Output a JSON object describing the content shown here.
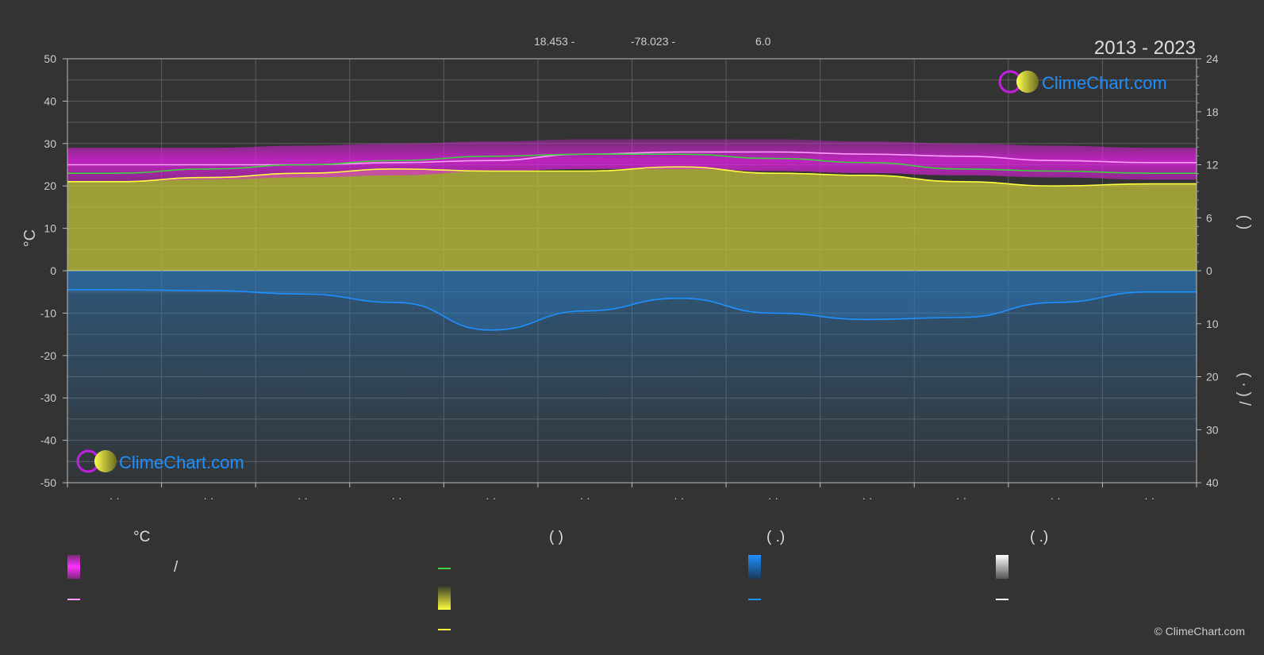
{
  "header": {
    "latitude": "18.453 -",
    "longitude": "-78.023 -",
    "elevation": "6.0",
    "period": "2013 - 2023"
  },
  "logo": {
    "text": "ClimeChart.com"
  },
  "copyright": "© ClimeChart.com",
  "legend": {
    "col1_head": "°C",
    "col1_row1_extra": "/",
    "col2_head": "(          )",
    "col3_head": "(    .)",
    "col4_head": "(    .)"
  },
  "colors": {
    "background": "#333333",
    "temp_range": "#e020e0",
    "max_line": "#ff9cff",
    "sunshine": "#c8c83a",
    "sunshine_line": "#ffff40",
    "daylight": "#3fd03f",
    "rain": "#2a7fc8",
    "rain_line": "#1e90ff",
    "snow": "#cccccc"
  },
  "chart_data": {
    "type": "area",
    "months": 12,
    "x_ticks": [
      "· ·",
      "· ·",
      "· ·",
      "· ·",
      "· ·",
      "· ·",
      "· ·",
      "· ·",
      "· ·",
      "· ·",
      "· ·",
      "· ·"
    ],
    "y_left": {
      "label": "°C",
      "range": [
        -50,
        50
      ],
      "ticks": [
        50,
        40,
        30,
        20,
        10,
        0,
        -10,
        -20,
        -30,
        -40,
        -50
      ]
    },
    "y_right_top": {
      "range": [
        0,
        24
      ],
      "ticks": [
        24,
        18,
        12,
        6,
        0
      ],
      "label": "(       )"
    },
    "y_right_bottom": {
      "range": [
        0,
        40
      ],
      "ticks": [
        10,
        20,
        30,
        40
      ],
      "label": "(  ·  )  /"
    },
    "grid": true,
    "series": [
      {
        "values": [
          29,
          29,
          29.5,
          30,
          30.5,
          31,
          31,
          31,
          30.5,
          30,
          29.5,
          29
        ]
      },
      {
        "values": [
          25,
          25,
          25,
          25.5,
          26,
          27.5,
          28,
          28,
          27.5,
          27,
          26,
          25.5
        ]
      },
      {
        "values": [
          21,
          21.5,
          22,
          22.5,
          23.5,
          24,
          24,
          23.5,
          23,
          22.5,
          22,
          21.5
        ]
      },
      {
        "values": [
          23,
          24,
          25,
          26,
          27,
          27.5,
          27.5,
          26.5,
          25.5,
          24,
          23.5,
          23
        ]
      },
      {
        "values": [
          21,
          22,
          23,
          24,
          23.5,
          23.5,
          24.5,
          23,
          22.5,
          21,
          20,
          20.5
        ]
      },
      {
        "values": [
          -4.5,
          -4.7,
          -5.5,
          -7.5,
          -14,
          -9.5,
          -6.5,
          -10,
          -11.5,
          -11,
          -7.5,
          -5
        ]
      }
    ]
  }
}
